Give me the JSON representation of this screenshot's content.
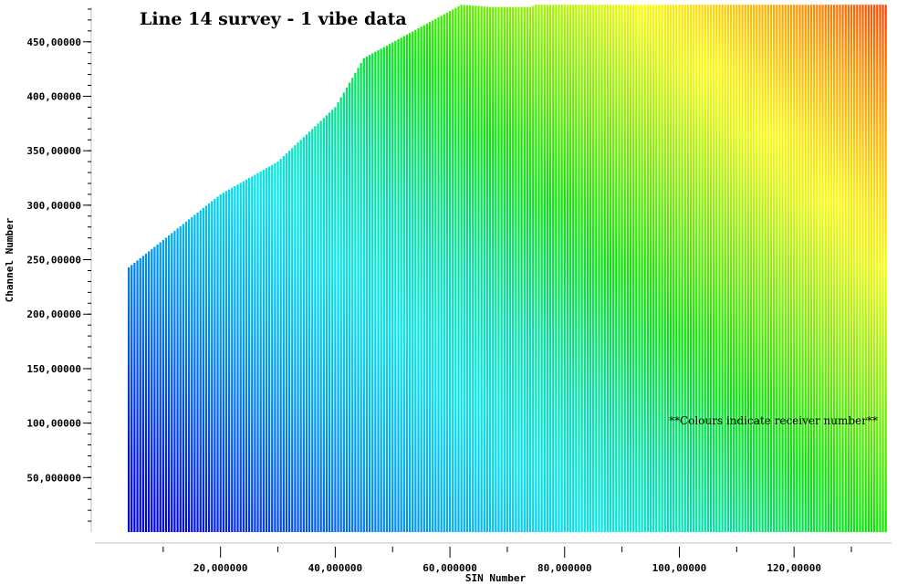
{
  "chart_data": {
    "type": "bar",
    "title": "Line 14 survey - 1 vibe data",
    "xlabel": "SIN Number",
    "ylabel": "Channel Number",
    "annotation": "**Colours indicate receiver number**",
    "xlim": [
      0,
      137
    ],
    "ylim": [
      0,
      485
    ],
    "x_ticks": [
      20,
      40,
      60,
      80,
      100,
      120
    ],
    "x_tick_labels": [
      "20,000000",
      "40,000000",
      "60,000000",
      "80,000000",
      "100,00000",
      "120,00000"
    ],
    "y_ticks": [
      50,
      100,
      150,
      200,
      250,
      300,
      350,
      400,
      450
    ],
    "y_tick_labels": [
      "50,000000",
      "100,00000",
      "150,00000",
      "200,00000",
      "250,00000",
      "300,00000",
      "350,00000",
      "400,00000",
      "450,00000"
    ],
    "sin_start": 4,
    "sin_end": 136,
    "sin_step": 0.5,
    "channel_max_points": [
      {
        "x": 4,
        "y": 243
      },
      {
        "x": 20,
        "y": 310
      },
      {
        "x": 30,
        "y": 340
      },
      {
        "x": 40,
        "y": 390
      },
      {
        "x": 45,
        "y": 435
      },
      {
        "x": 62,
        "y": 484
      },
      {
        "x": 67,
        "y": 482
      },
      {
        "x": 74,
        "y": 482
      },
      {
        "x": 75,
        "y": 484
      },
      {
        "x": 136,
        "y": 484
      }
    ],
    "colour_scale": [
      "#0000dd",
      "#0055ee",
      "#00aaee",
      "#00e8ee",
      "#00e0a0",
      "#00e800",
      "#80ee00",
      "#ffff00",
      "#ffa000",
      "#ff2000"
    ]
  }
}
